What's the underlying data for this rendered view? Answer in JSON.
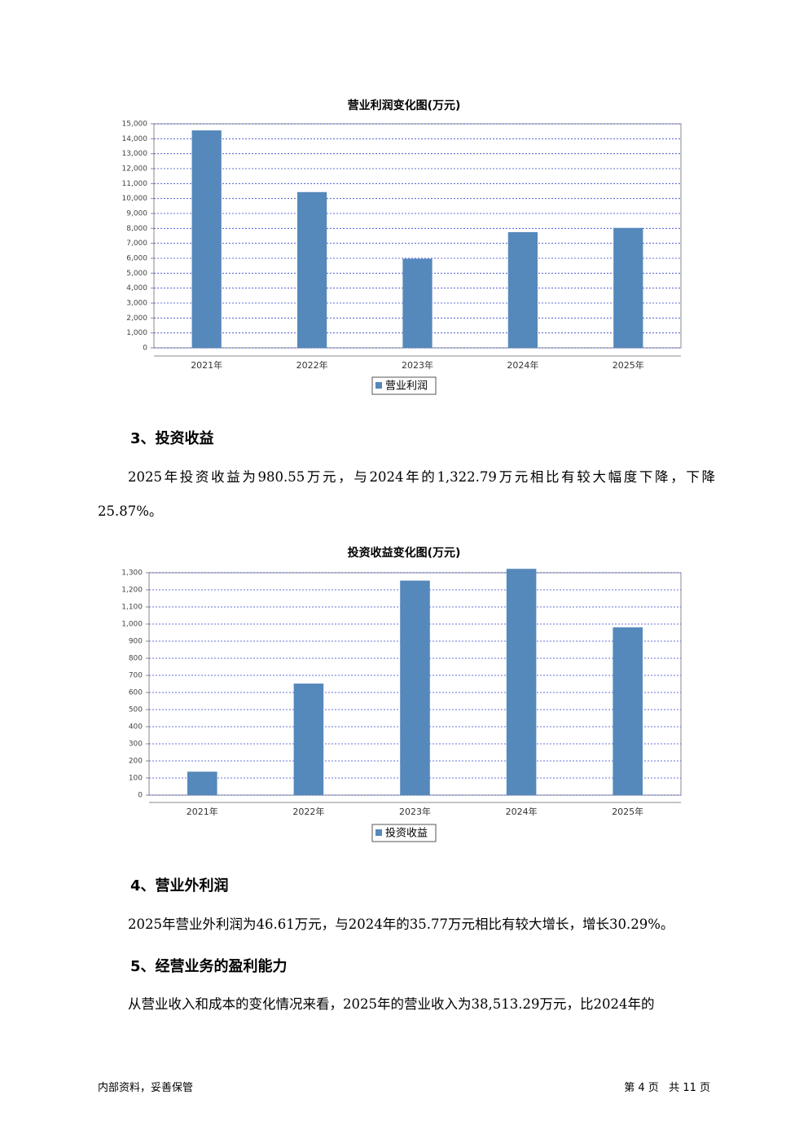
{
  "chart_data": [
    {
      "type": "bar",
      "title": "营业利润变化图(万元)",
      "categories": [
        "2021年",
        "2022年",
        "2023年",
        "2024年",
        "2025年"
      ],
      "series": [
        {
          "name": "营业利润",
          "color": "#5588bb",
          "values": [
            14560,
            10430,
            5970,
            7750,
            8030
          ]
        }
      ],
      "ylim": [
        0,
        15000
      ],
      "yticks": [
        0,
        {
          "value": 1000,
          "label": "1,000"
        },
        {
          "value": 2000,
          "label": "2,000"
        },
        {
          "value": 3000,
          "label": "3,000"
        },
        {
          "value": 4000,
          "label": "4,000"
        },
        {
          "value": 5000,
          "label": "5,000"
        },
        {
          "value": 6000,
          "label": "6,000"
        },
        {
          "value": 7000,
          "label": "7,000"
        },
        {
          "value": 8000,
          "label": "8,000"
        },
        {
          "value": 9000,
          "label": "9,000"
        },
        {
          "value": 10000,
          "label": "10,000"
        },
        {
          "value": 11000,
          "label": "11,000"
        },
        {
          "value": 12000,
          "label": "12,000"
        },
        {
          "value": 13000,
          "label": "13,000"
        },
        {
          "value": 14000,
          "label": "14,000"
        },
        {
          "value": 15000,
          "label": "15,000"
        }
      ],
      "grid": true
    },
    {
      "type": "bar",
      "title": "投资收益变化图(万元)",
      "categories": [
        "2021年",
        "2022年",
        "2023年",
        "2024年",
        "2025年"
      ],
      "series": [
        {
          "name": "投资收益",
          "color": "#5588bb",
          "values": [
            137,
            652,
            1254,
            1322.79,
            980.55
          ]
        }
      ],
      "ylim": [
        0,
        1300
      ],
      "yticks": [
        0,
        100,
        200,
        300,
        400,
        500,
        600,
        700,
        800,
        900,
        {
          "value": 1000,
          "label": "1,000"
        },
        {
          "value": 1100,
          "label": "1,100"
        },
        {
          "value": 1200,
          "label": "1,200"
        },
        {
          "value": 1300,
          "label": "1,300"
        }
      ],
      "grid": true
    }
  ],
  "sections": [
    {
      "heading": "3、投资收益",
      "paragraph": "2025年投资收益为980.55万元，与2024年的1,322.79万元相比有较大幅度下降，下降25.87%。"
    },
    {
      "heading": "4、营业外利润",
      "paragraph": "2025年营业外利润为46.61万元，与2024年的35.77万元相比有较大增长，增长30.29%。"
    },
    {
      "heading": "5、经营业务的盈利能力",
      "paragraph": "从营业收入和成本的变化情况来看，2025年的营业收入为38,513.29万元，比2024年的"
    }
  ],
  "footer": {
    "left": "内部资料，妥善保管",
    "right": "第 4 页   共 11 页"
  }
}
